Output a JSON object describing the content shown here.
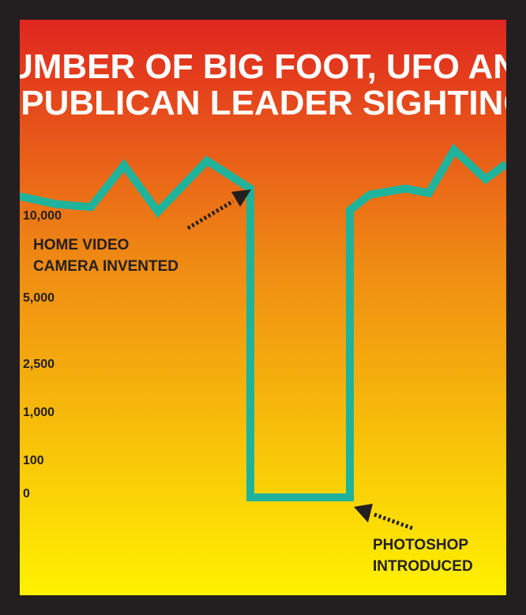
{
  "chart_data": {
    "type": "line",
    "title_lines": [
      "NUMBER OF BIG FOOT, UFO AND",
      "REPUBLICAN LEADER SIGHTINGS"
    ],
    "xlabel": "",
    "ylabel": "",
    "y_ticks": [
      "10,000",
      "5,000",
      "2,500",
      "1,000",
      "100",
      "0"
    ],
    "grid": false,
    "legend": "none",
    "series": [
      {
        "values": [
          11500,
          11000,
          10800,
          13500,
          10500,
          13800,
          12000,
          0,
          0,
          10600,
          11600,
          12000,
          11700,
          14500,
          12600,
          13600
        ]
      }
    ],
    "annotations": [
      {
        "lines": [
          "HOME VIDEO",
          "CAMERA INVENTED"
        ]
      },
      {
        "lines": [
          "PHOTOSHOP",
          "INTRODUCED"
        ]
      }
    ],
    "colors": {
      "line": "#1fb39c",
      "background_top": "#e0261f",
      "background_mid": "#ef8a14",
      "background_bottom": "#fff200",
      "frame": "#231f20",
      "title": "#ffffff",
      "text": "#231f20"
    }
  }
}
